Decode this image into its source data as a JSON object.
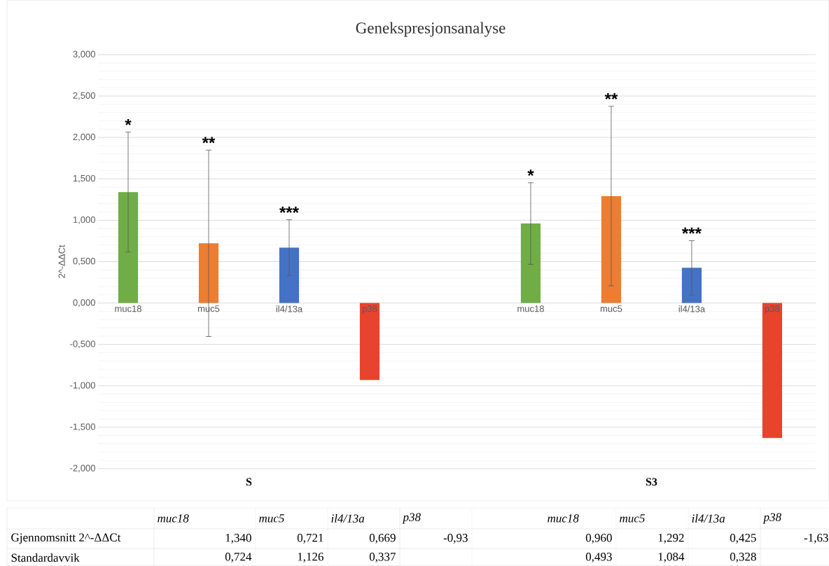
{
  "chart_data": {
    "type": "bar",
    "title": "Genekspresjonsanalyse",
    "ylabel": "2^-ΔΔCt",
    "categories": [
      "muc18",
      "muc5",
      "il4/13a",
      "p38",
      "muc18",
      "muc5",
      "il4/13a",
      "p38"
    ],
    "values": [
      1.34,
      0.721,
      0.669,
      -0.93,
      0.96,
      1.292,
      0.425,
      -1.63
    ],
    "errors": [
      0.724,
      1.126,
      0.337,
      null,
      0.493,
      1.084,
      0.328,
      null
    ],
    "colors": [
      "#70ad47",
      "#ed7d31",
      "#4472c4",
      "#e8432d",
      "#70ad47",
      "#ed7d31",
      "#4472c4",
      "#e8432d"
    ],
    "ylim": [
      -2,
      3
    ],
    "yticks": [
      {
        "value": -2,
        "label": "-2,000"
      },
      {
        "value": -1.5,
        "label": "-1,500"
      },
      {
        "value": -1,
        "label": "-1,000"
      },
      {
        "value": -0.5,
        "label": "-0,500"
      },
      {
        "value": 0,
        "label": "0,000"
      },
      {
        "value": 0.5,
        "label": "0,500"
      },
      {
        "value": 1,
        "label": "1,000"
      },
      {
        "value": 1.5,
        "label": "1,500"
      },
      {
        "value": 2,
        "label": "2,000"
      },
      {
        "value": 2.5,
        "label": "2,500"
      },
      {
        "value": 3,
        "label": "3,000"
      }
    ],
    "grid": "y",
    "annotations": [
      "*",
      "**",
      "***",
      "*",
      "**",
      "***",
      "S",
      "S3",
      "Gjennomsnitt 2^-ΔΔCt",
      "Standardavvik",
      "1,340",
      "0,721",
      "0,669",
      "-0,93",
      "0,960",
      "1,292",
      "0,425",
      "-1,63",
      "0,724",
      "1,126",
      "0,337",
      "0,493",
      "1,084",
      "0,328"
    ]
  }
}
